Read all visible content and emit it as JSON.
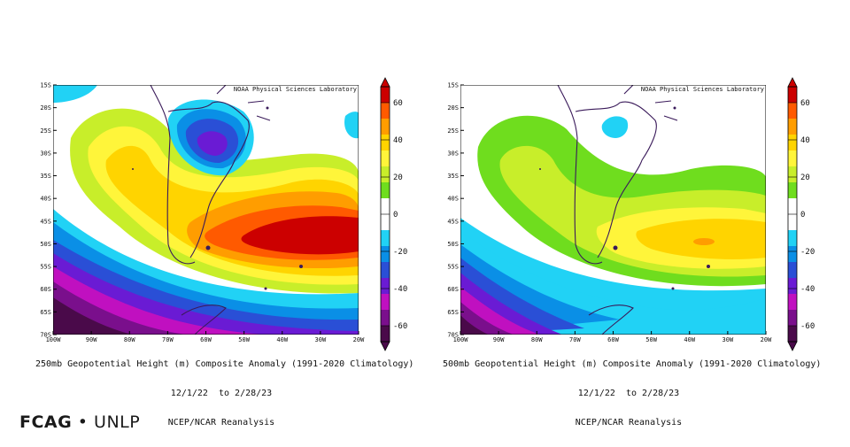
{
  "lon_ticks": [
    "100W",
    "90W",
    "80W",
    "70W",
    "60W",
    "50W",
    "40W",
    "30W",
    "20W"
  ],
  "lat_ticks": [
    "15S",
    "20S",
    "25S",
    "30S",
    "35S",
    "40S",
    "45S",
    "50S",
    "55S",
    "60S",
    "65S",
    "70S"
  ],
  "colorbar": {
    "labels": [
      "60",
      "40",
      "20",
      "0",
      "-20",
      "-40",
      "-60"
    ],
    "colors": [
      "#cc0000",
      "#ff5a00",
      "#ff9d00",
      "#ffd400",
      "#fff53a",
      "#c8ee2a",
      "#6fdd1e",
      "#ffffff",
      "#ffffff",
      "#21d2f5",
      "#0a8fe6",
      "#2a4fd6",
      "#6a1bd4",
      "#c010c0",
      "#7a0f8c",
      "#4a0a4a"
    ]
  },
  "panels": [
    {
      "credit": "NOAA Physical Sciences Laboratory",
      "caption_line1": "250mb Geopotential Height (m) Composite Anomaly (1991-2020 Climatology)",
      "caption_line2": "12/1/22  to 2/28/23",
      "caption_line3": "NCEP/NCAR Reanalysis"
    },
    {
      "credit": "NOAA Physical Sciences Laboratory",
      "caption_line1": "500mb Geopotential Height (m) Composite Anomaly (1991-2020 Climatology)",
      "caption_line2": "12/1/22  to 2/28/23",
      "caption_line3": "NCEP/NCAR Reanalysis"
    }
  ],
  "logo": {
    "left": "FCAG",
    "separator": "•",
    "right": "UNLP"
  }
}
